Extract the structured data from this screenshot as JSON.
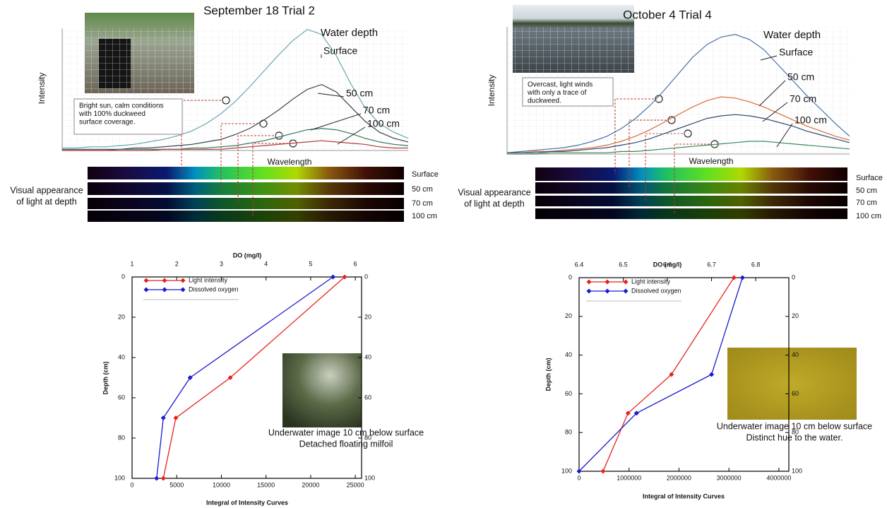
{
  "chart_data": [
    {
      "type": "line",
      "title": "September 18 Trial 2",
      "xlabel": "Wavelength",
      "ylabel": "Intensity",
      "ylim": [
        0,
        100
      ],
      "legend_title": "Water depth",
      "note": [
        "Bright sun, calm conditions",
        "with 100% duckweed",
        "surface coverage."
      ],
      "series": [
        {
          "name": "Surface",
          "color": "#6aa6b0",
          "values": [
            2,
            2,
            3,
            3,
            4,
            5,
            7,
            9,
            12,
            16,
            22,
            30,
            40,
            52,
            65,
            78,
            90,
            99,
            95,
            78,
            55,
            35,
            22,
            15,
            10
          ]
        },
        {
          "name": "50 cm",
          "color": "#3b3f4f",
          "values": [
            1,
            1,
            1,
            1,
            1,
            2,
            2,
            3,
            4,
            5,
            7,
            9,
            13,
            18,
            25,
            33,
            42,
            50,
            54,
            48,
            36,
            24,
            15,
            10,
            7
          ]
        },
        {
          "name": "70 cm",
          "color": "#2f7a5e",
          "values": [
            0,
            0,
            0,
            0,
            1,
            1,
            1,
            1,
            1,
            2,
            2,
            3,
            4,
            6,
            8,
            11,
            14,
            17,
            18,
            17,
            14,
            10,
            7,
            5,
            4
          ]
        },
        {
          "name": "100 cm",
          "color": "#b23a3a",
          "values": [
            0,
            0,
            0,
            0,
            0,
            0,
            0,
            1,
            1,
            1,
            1,
            1,
            2,
            3,
            4,
            5,
            6,
            7,
            8,
            7,
            6,
            5,
            3,
            2,
            2
          ]
        }
      ]
    },
    {
      "type": "line",
      "title": "October 4 Trial 4",
      "xlabel": "Wavelength",
      "ylabel": "Intensity",
      "ylim": [
        0,
        100
      ],
      "legend_title": "Water depth",
      "note": [
        "Overcast, light winds",
        "with only a trace of",
        "duckweed."
      ],
      "series": [
        {
          "name": "Surface",
          "color": "#4a6fa5",
          "values": [
            1,
            2,
            3,
            4,
            5,
            7,
            10,
            14,
            20,
            28,
            38,
            50,
            63,
            76,
            86,
            92,
            94,
            90,
            82,
            70,
            58,
            46,
            35,
            24,
            14
          ]
        },
        {
          "name": "50 cm",
          "color": "#d96a3a",
          "values": [
            1,
            1,
            2,
            2,
            3,
            4,
            5,
            7,
            10,
            14,
            19,
            25,
            31,
            37,
            42,
            45,
            44,
            41,
            37,
            32,
            27,
            22,
            18,
            14,
            11
          ]
        },
        {
          "name": "70 cm",
          "color": "#2f4a70",
          "values": [
            1,
            1,
            1,
            2,
            2,
            3,
            4,
            5,
            7,
            9,
            12,
            16,
            20,
            24,
            28,
            30,
            31,
            30,
            28,
            25,
            22,
            18,
            15,
            12,
            9
          ]
        },
        {
          "name": "100 cm",
          "color": "#3a8a5a",
          "values": [
            0,
            0,
            0,
            1,
            1,
            1,
            1,
            1,
            2,
            2,
            3,
            4,
            5,
            6,
            7,
            8,
            9,
            10,
            10,
            9,
            8,
            7,
            6,
            5,
            4
          ]
        }
      ]
    },
    {
      "type": "line",
      "xlabel": "Integral of Intensity Curves",
      "x2label": "DO (mg/l)",
      "ylabel": "Depth (cm)",
      "xlim": [
        0,
        25700
      ],
      "xticks": [
        0,
        5000,
        10000,
        15000,
        20000,
        25000
      ],
      "x2lim": [
        1,
        6.14
      ],
      "x2ticks": [
        1,
        2,
        3,
        4,
        5,
        6
      ],
      "ylim": [
        0,
        100
      ],
      "yticks": [
        0,
        20,
        40,
        60,
        80,
        100
      ],
      "caption": [
        "Underwater image 10 cm below surface",
        "Detached floating milfoil"
      ],
      "series": [
        {
          "name": "Light intensity",
          "color": "#e8201c",
          "x": [
            23800,
            11000,
            4900,
            3500
          ],
          "y": [
            0,
            50,
            70,
            100
          ]
        },
        {
          "name": "Dissolved oxygen",
          "color": "#1a1ad0",
          "axis": "x2",
          "x": [
            5.5,
            2.3,
            1.7,
            1.55
          ],
          "y": [
            0,
            50,
            70,
            100
          ]
        }
      ]
    },
    {
      "type": "line",
      "xlabel": "Integral of Intensity Curves",
      "x2label": "DO (mg/l)",
      "ylabel": "Depth (cm)",
      "xlim": [
        0,
        4200000
      ],
      "xticks": [
        0,
        1000000,
        2000000,
        3000000,
        4000000
      ],
      "x2lim": [
        6.4,
        6.875
      ],
      "x2ticks": [
        6.4,
        6.5,
        6.6,
        6.7,
        6.8
      ],
      "ylim": [
        0,
        100
      ],
      "yticks": [
        0,
        20,
        40,
        60,
        80,
        100
      ],
      "caption": [
        "Underwater image 10 cm below surface",
        "Distinct hue to the water."
      ],
      "series": [
        {
          "name": "Light intensity",
          "color": "#e8201c",
          "x": [
            3100000,
            1850000,
            980000,
            480000
          ],
          "y": [
            0,
            50,
            70,
            100
          ]
        },
        {
          "name": "Dissolved oxygen",
          "color": "#1a1ad0",
          "axis": "x2",
          "x": [
            6.77,
            6.7,
            6.53,
            6.4
          ],
          "y": [
            0,
            50,
            70,
            100
          ]
        }
      ]
    }
  ],
  "strips": [
    {
      "label": [
        "Visual appearance",
        "of light at depth"
      ],
      "rows": [
        "Surface",
        "50 cm",
        "70 cm",
        "100 cm"
      ]
    },
    {
      "label": [
        "Visual appearance",
        "of light at depth"
      ],
      "rows": [
        "Surface",
        "50 cm",
        "70 cm",
        "100 cm"
      ]
    }
  ]
}
